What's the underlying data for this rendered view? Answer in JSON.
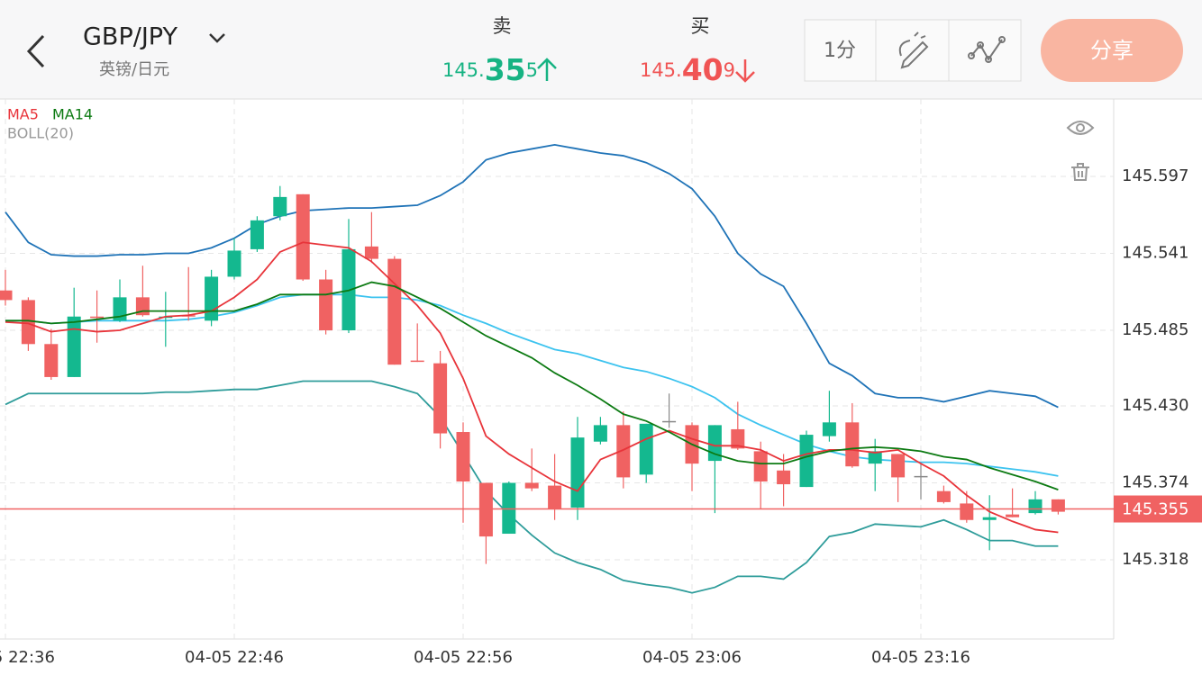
{
  "header": {
    "pair": "GBP/JPY",
    "pair_name": "英镑/日元",
    "sell": {
      "label": "卖",
      "prefix": "145.",
      "big": "35",
      "suffix": "5"
    },
    "buy": {
      "label": "买",
      "prefix": "145.",
      "big": "40",
      "suffix": "9"
    },
    "interval": "1分",
    "share": "分享"
  },
  "chart_data": {
    "type": "candlestick",
    "categories": [
      "04-05 22:36",
      null,
      null,
      null,
      null,
      null,
      null,
      null,
      null,
      null,
      "04-05 22:46",
      null,
      null,
      null,
      null,
      null,
      null,
      null,
      null,
      null,
      "04-05 22:56",
      null,
      null,
      null,
      null,
      null,
      null,
      null,
      null,
      null,
      "04-05 23:06",
      null,
      null,
      null,
      null,
      null,
      null,
      null,
      null,
      null,
      "04-05 23:16",
      null,
      null,
      null,
      null,
      null,
      null
    ],
    "open": [
      145.514,
      145.507,
      145.475,
      145.451,
      145.495,
      145.492,
      145.509,
      145.494,
      145.496,
      145.492,
      145.524,
      145.544,
      145.568,
      145.584,
      145.522,
      145.485,
      145.546,
      145.537,
      145.463,
      145.461,
      145.411,
      145.374,
      145.337,
      145.374,
      145.372,
      145.356,
      145.404,
      145.416,
      145.38,
      145.419,
      145.416,
      145.39,
      145.413,
      145.397,
      145.383,
      145.371,
      145.408,
      145.418,
      145.388,
      145.395,
      145.379,
      145.368,
      145.359,
      145.347,
      145.351,
      145.352,
      145.362
    ],
    "high": [
      145.529,
      145.509,
      145.486,
      145.516,
      145.514,
      145.522,
      145.532,
      145.513,
      145.531,
      145.529,
      145.552,
      145.568,
      145.59,
      145.584,
      145.529,
      145.566,
      145.571,
      145.539,
      145.49,
      145.47,
      145.418,
      145.374,
      145.375,
      145.399,
      145.395,
      145.422,
      145.422,
      145.426,
      145.417,
      145.439,
      145.418,
      145.416,
      145.433,
      145.404,
      145.395,
      145.412,
      145.441,
      145.432,
      145.406,
      145.395,
      145.388,
      145.372,
      145.368,
      145.365,
      145.37,
      145.368,
      145.362
    ],
    "low": [
      145.503,
      145.47,
      145.449,
      145.451,
      145.476,
      145.491,
      145.495,
      145.473,
      145.492,
      145.488,
      145.522,
      145.542,
      145.565,
      145.521,
      145.482,
      145.483,
      145.534,
      145.46,
      145.462,
      145.399,
      145.345,
      145.315,
      145.337,
      145.368,
      145.347,
      145.347,
      145.402,
      145.37,
      145.374,
      145.414,
      145.368,
      145.352,
      145.398,
      145.355,
      145.357,
      145.371,
      145.404,
      145.385,
      145.368,
      145.36,
      145.362,
      145.359,
      145.345,
      145.325,
      145.349,
      145.351,
      145.351
    ],
    "close": [
      145.507,
      145.475,
      145.451,
      145.495,
      145.494,
      145.509,
      145.496,
      145.495,
      145.495,
      145.524,
      145.543,
      145.565,
      145.582,
      145.522,
      145.485,
      145.544,
      145.537,
      145.46,
      145.462,
      145.41,
      145.375,
      145.335,
      145.374,
      145.37,
      145.355,
      145.407,
      145.416,
      145.378,
      145.417,
      145.419,
      145.388,
      145.416,
      145.399,
      145.375,
      145.373,
      145.409,
      145.418,
      145.386,
      145.397,
      145.378,
      145.379,
      145.36,
      145.347,
      145.349,
      145.349,
      145.362,
      145.353
    ],
    "up_color": "#14b88f",
    "down_color": "#f06262",
    "doji_color": "#888888",
    "indicators": [
      {
        "name": "MA5",
        "color": "#e8343a",
        "values": [
          145.491,
          145.49,
          145.484,
          145.486,
          145.484,
          145.485,
          145.49,
          145.495,
          145.496,
          145.499,
          145.509,
          145.522,
          145.542,
          145.549,
          145.547,
          145.545,
          145.535,
          145.519,
          145.503,
          145.483,
          145.45,
          145.408,
          145.395,
          145.385,
          145.375,
          145.368,
          145.391,
          145.398,
          145.406,
          145.412,
          145.406,
          145.401,
          145.401,
          145.398,
          145.39,
          145.395,
          145.398,
          145.398,
          145.396,
          145.398,
          145.388,
          145.379,
          145.365,
          145.353,
          145.346,
          145.34,
          145.338
        ]
      },
      {
        "name": "MA14",
        "color": "#0c7a12",
        "values": [
          145.492,
          145.492,
          145.49,
          145.491,
          145.493,
          145.495,
          145.499,
          145.499,
          145.499,
          145.499,
          145.499,
          145.504,
          145.511,
          145.511,
          145.511,
          145.514,
          145.52,
          145.517,
          145.509,
          145.501,
          145.491,
          145.481,
          145.473,
          145.465,
          145.454,
          145.445,
          145.435,
          145.424,
          145.419,
          145.411,
          145.402,
          145.395,
          145.39,
          145.388,
          145.388,
          145.393,
          145.397,
          145.399,
          145.4,
          145.399,
          145.397,
          145.393,
          145.391,
          145.385,
          145.38,
          145.375,
          145.369
        ]
      }
    ],
    "boll": {
      "name": "BOLL(20)",
      "legend_color": "#999999",
      "upper": {
        "color": "#1f73b7",
        "values": [
          145.571,
          145.549,
          145.54,
          145.539,
          145.539,
          145.54,
          145.54,
          145.541,
          145.541,
          145.545,
          145.552,
          145.562,
          145.568,
          145.572,
          145.573,
          145.574,
          145.574,
          145.575,
          145.576,
          145.583,
          145.593,
          145.609,
          145.614,
          145.617,
          145.62,
          145.617,
          145.614,
          145.612,
          145.607,
          145.599,
          145.588,
          145.568,
          145.541,
          145.526,
          145.517,
          145.49,
          145.461,
          145.452,
          145.439,
          145.436,
          145.436,
          145.433,
          145.437,
          145.441,
          145.439,
          145.437,
          145.429
        ]
      },
      "middle": {
        "color": "#3cc3ef",
        "values": [
          145.492,
          145.492,
          145.49,
          145.491,
          145.492,
          145.492,
          145.492,
          145.492,
          145.493,
          145.495,
          145.498,
          145.503,
          145.509,
          145.511,
          145.511,
          145.511,
          145.509,
          145.509,
          145.507,
          145.503,
          145.496,
          145.49,
          145.483,
          145.477,
          145.471,
          145.468,
          145.463,
          145.458,
          145.455,
          145.45,
          145.444,
          145.436,
          145.424,
          145.416,
          145.409,
          145.402,
          145.397,
          145.393,
          145.391,
          145.39,
          145.389,
          145.389,
          145.388,
          145.386,
          145.384,
          145.382,
          145.379
        ]
      },
      "lower": {
        "color": "#2e9c9a",
        "values": [
          145.431,
          145.439,
          145.439,
          145.439,
          145.439,
          145.439,
          145.439,
          145.44,
          145.44,
          145.441,
          145.442,
          145.442,
          145.445,
          145.448,
          145.448,
          145.448,
          145.448,
          145.444,
          145.439,
          145.422,
          145.395,
          145.368,
          145.351,
          145.336,
          145.323,
          145.316,
          145.311,
          145.303,
          145.3,
          145.298,
          145.294,
          145.298,
          145.306,
          145.306,
          145.304,
          145.316,
          145.335,
          145.338,
          145.344,
          145.343,
          145.342,
          145.347,
          145.34,
          145.332,
          145.332,
          145.328,
          145.328
        ]
      }
    },
    "ylim": [
      145.2604,
      145.6533
    ],
    "yticks": [
      145.597,
      145.541,
      145.485,
      {
        "value": 145.43,
        "label": "145.430"
      },
      145.374,
      145.318
    ],
    "grid": true,
    "last_price": 145.355,
    "last_price_color": "#f06262"
  }
}
